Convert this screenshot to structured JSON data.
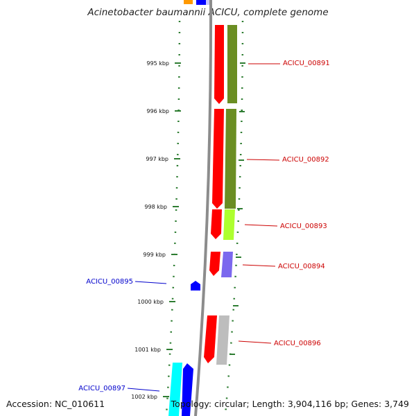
{
  "title": "Acinetobacter baumannii ACICU, complete genome",
  "footer": {
    "accession": "Accession: NC_010611",
    "topology": "Topology: circular; Length: 3,904,116 bp; Genes: 3,749"
  },
  "ticks": [
    "995 kbp",
    "996 kbp",
    "997 kbp",
    "998 kbp",
    "999 kbp",
    "1000 kbp",
    "1001 kbp",
    "1002 kbp"
  ],
  "genes": [
    {
      "label": "ACICU_00891",
      "strand": "forward",
      "color": "#cc0000"
    },
    {
      "label": "ACICU_00892",
      "strand": "forward",
      "color": "#cc0000"
    },
    {
      "label": "ACICU_00893",
      "strand": "forward",
      "color": "#cc0000"
    },
    {
      "label": "ACICU_00894",
      "strand": "forward",
      "color": "#cc0000"
    },
    {
      "label": "ACICU_00895",
      "strand": "reverse",
      "color": "#0000cc"
    },
    {
      "label": "ACICU_00896",
      "strand": "forward",
      "color": "#cc0000"
    },
    {
      "label": "ACICU_00897",
      "strand": "reverse",
      "color": "#0000cc"
    }
  ],
  "colors": {
    "cds_forward": "#ff0000",
    "cds_reverse": "#0000ff",
    "backbone": "#8c8c8c",
    "tick": "#2e7d32",
    "cog_olive": "#6b8e23",
    "cog_lime": "#adff2f",
    "cog_purple": "#7b68ee",
    "cog_gray": "#bdbdbd",
    "cog_cyan": "#00ffff",
    "cog_orange": "#ff9900"
  }
}
